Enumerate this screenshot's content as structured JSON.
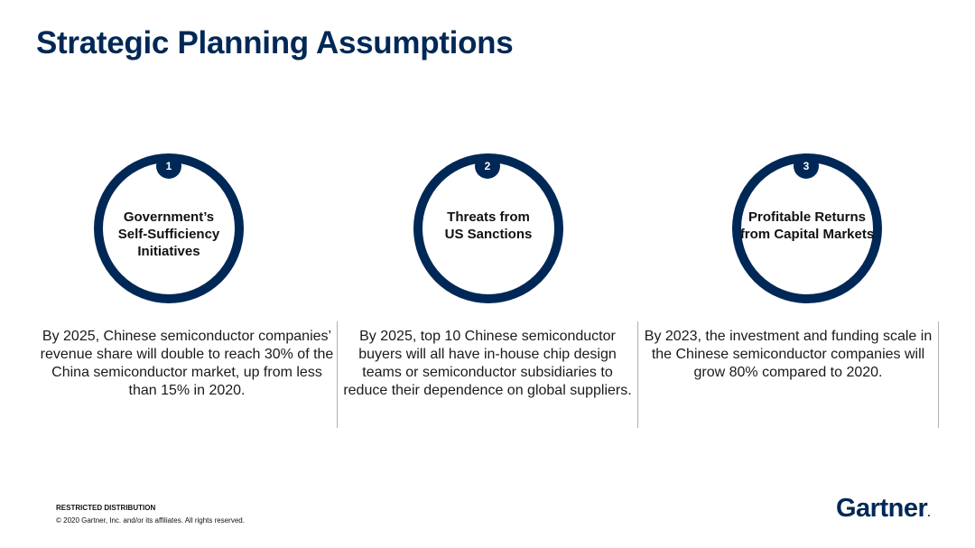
{
  "slide": {
    "title": "Strategic Planning Assumptions"
  },
  "assumptions": [
    {
      "number": "1",
      "heading": "Government’s\nSelf-Sufficiency\nInitiatives",
      "text": "By 2025, Chinese semiconductor companies’\nrevenue share will double to reach 30% of the\nChina semiconductor market, up from less\nthan 15% in 2020."
    },
    {
      "number": "2",
      "heading": "Threats from\nUS Sanctions",
      "text": "By 2025, top 10 Chinese semiconductor\nbuyers will all have in-house chip design\nteams or semiconductor subsidiaries to\nreduce their dependence on global suppliers."
    },
    {
      "number": "3",
      "heading": "Profitable Returns\nfrom Capital Markets",
      "text": "By 2023, the investment and funding scale in\nthe Chinese semiconductor companies will\ngrow 80% compared to 2020."
    }
  ],
  "footer": {
    "restricted": "RESTRICTED DISTRIBUTION",
    "copyright": "© 2020 Gartner, Inc. and/or its affiliates. All rights reserved.",
    "logo_text": "Gartner",
    "logo_dot": "."
  },
  "colors": {
    "accent": "#002856",
    "divider": "#b0b0b0"
  }
}
